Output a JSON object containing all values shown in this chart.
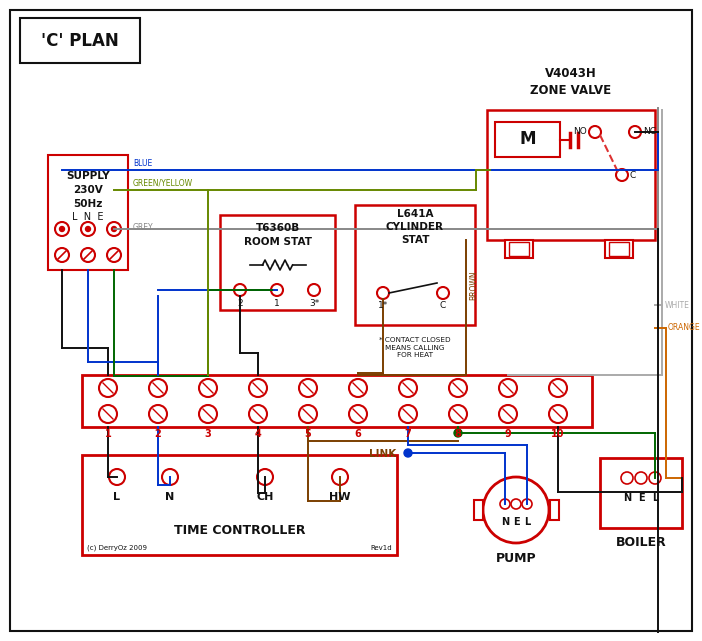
{
  "title": "'C' PLAN",
  "bg_color": "#ffffff",
  "red": "#cc0000",
  "blue": "#0033cc",
  "green": "#006600",
  "grey": "#888888",
  "brown": "#7b3f00",
  "orange": "#cc6600",
  "black": "#111111",
  "green_yellow": "#668800",
  "dashed_red": "#dd3333",
  "zone_valve_title": "V4043H\nZONE VALVE",
  "time_controller_label": "TIME CONTROLLER",
  "pump_label": "PUMP",
  "boiler_label": "BOILER",
  "link_label": "LINK",
  "footnote1": "(c) DerryOz 2009",
  "footnote2": "Rev1d",
  "contact_note": "* CONTACT CLOSED\nMEANS CALLING\nFOR HEAT"
}
